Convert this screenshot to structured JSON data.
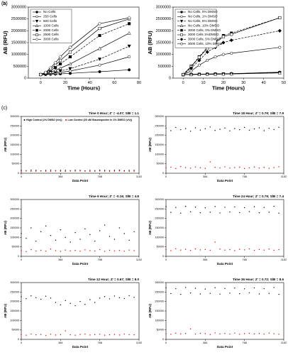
{
  "chart_data": [
    {
      "type": "line",
      "panel_label": "(a)",
      "xlabel": "Time (Hours)",
      "ylabel": "AB (RFU)",
      "x": [
        0,
        4,
        8,
        12,
        16,
        24,
        48,
        72
      ],
      "xlim": [
        -10,
        80
      ],
      "xticks": [
        0,
        20,
        40,
        60,
        80
      ],
      "ylim": [
        0,
        3000000
      ],
      "yticks": [
        0,
        500000,
        1000000,
        1500000,
        2000000,
        2500000,
        3000000
      ],
      "grid": false,
      "legend": "upper left",
      "series": [
        {
          "name": "No Cells",
          "color": "#000000",
          "marker": "circle",
          "fill": "#000000",
          "linestyle": "solid",
          "values": [
            150000,
            150000,
            160000,
            170000,
            180000,
            200000,
            270000,
            350000
          ]
        },
        {
          "name": "250 Cells",
          "color": "#000000",
          "marker": "circle",
          "fill": "#ffffff",
          "linestyle": "solid",
          "values": [
            150000,
            160000,
            180000,
            210000,
            240000,
            300000,
            550000,
            900000
          ]
        },
        {
          "name": "500 Cells",
          "color": "#000000",
          "marker": "triangle-down",
          "fill": "#000000",
          "linestyle": "dashed",
          "values": [
            150000,
            170000,
            200000,
            250000,
            300000,
            400000,
            800000,
            1350000
          ]
        },
        {
          "name": "1000 Cells",
          "color": "#000000",
          "marker": "triangle-up",
          "fill": "#ffffff",
          "linestyle": "solid",
          "values": [
            150000,
            180000,
            250000,
            330000,
            420000,
            600000,
            1250000,
            1900000
          ]
        },
        {
          "name": "2000 Cells",
          "color": "#000000",
          "marker": "square",
          "fill": "#000000",
          "linestyle": "dashed",
          "values": [
            150000,
            200000,
            320000,
            450000,
            600000,
            900000,
            1800000,
            2300000
          ]
        },
        {
          "name": "2500 Cells",
          "color": "#000000",
          "marker": "square",
          "fill": "#ffffff",
          "linestyle": "solid",
          "values": [
            150000,
            220000,
            380000,
            550000,
            750000,
            1100000,
            2100000,
            2500000
          ]
        },
        {
          "name": "3000 Cells",
          "color": "#000000",
          "marker": "diamond",
          "fill": "#ffffff",
          "linestyle": "solid",
          "values": [
            150000,
            240000,
            430000,
            650000,
            900000,
            1300000,
            2300000,
            2550000
          ]
        }
      ]
    },
    {
      "type": "line",
      "panel_label": "(b)",
      "xlabel": "Time (Hours)",
      "ylabel": "AB (RFU)",
      "x": [
        0,
        4,
        8,
        12,
        16,
        20,
        24,
        48
      ],
      "xlim": [
        -5,
        50
      ],
      "xticks": [
        0,
        10,
        20,
        30,
        40,
        50
      ],
      "ylim": [
        0,
        3000000
      ],
      "yticks": [
        0,
        500000,
        1000000,
        1500000,
        2000000,
        2500000,
        3000000
      ],
      "grid": false,
      "legend": "upper left",
      "series": [
        {
          "name": "No Cells, 0% DMSO",
          "color": "#000000",
          "marker": "circle",
          "fill": "#000000",
          "linestyle": "solid",
          "values": [
            150000,
            160000,
            170000,
            175000,
            180000,
            185000,
            190000,
            250000
          ]
        },
        {
          "name": "No Cells, 1% DMSO",
          "color": "#000000",
          "marker": "circle",
          "fill": "#ffffff",
          "linestyle": "solid",
          "values": [
            150000,
            155000,
            165000,
            170000,
            175000,
            180000,
            185000,
            240000
          ]
        },
        {
          "name": "No Cells, 5% DMSO",
          "color": "#000000",
          "marker": "triangle-down",
          "fill": "#000000",
          "linestyle": "dashed",
          "values": [
            145000,
            150000,
            160000,
            165000,
            170000,
            175000,
            180000,
            230000
          ]
        },
        {
          "name": "No Cells, 10% DMSO",
          "color": "#000000",
          "marker": "triangle-up",
          "fill": "#ffffff",
          "linestyle": "solid",
          "values": [
            140000,
            148000,
            155000,
            160000,
            165000,
            170000,
            175000,
            220000
          ]
        },
        {
          "name": "3000 Cells, 0% DMSO",
          "color": "#000000",
          "marker": "square",
          "fill": "#000000",
          "linestyle": "dashed",
          "values": [
            150000,
            500000,
            900000,
            1300000,
            1550000,
            1800000,
            1900000,
            2550000
          ]
        },
        {
          "name": "3000 Cells 1%DMSO",
          "color": "#000000",
          "marker": "square",
          "fill": "#ffffff",
          "linestyle": "solid",
          "values": [
            150000,
            480000,
            880000,
            1250000,
            1500000,
            1750000,
            1850000,
            2550000
          ]
        },
        {
          "name": "3000 Cells, 5% DMSO",
          "color": "#000000",
          "marker": "diamond",
          "fill": "#000000",
          "linestyle": "dashed",
          "values": [
            150000,
            420000,
            750000,
            1100000,
            1300000,
            1500000,
            1600000,
            2000000
          ]
        },
        {
          "name": "3000 Cells, 10% DMSO",
          "color": "#000000",
          "marker": "circle",
          "fill": "#ffffff",
          "linestyle": "solid",
          "values": [
            150000,
            300000,
            550000,
            750000,
            900000,
            1000000,
            1050000,
            1300000
          ]
        }
      ]
    },
    {
      "type": "scatter",
      "panel_label": "(c)",
      "title": "Time 0 Hour; Z' = -4.07; S/B = 1.1",
      "xlabel": "Data Point",
      "ylabel": "AB (RFU)",
      "x": [
        0,
        48,
        96,
        144,
        192,
        240,
        288,
        336,
        384,
        432,
        480,
        528,
        576,
        624,
        672,
        720,
        768,
        816,
        864,
        912,
        960,
        1008,
        1056,
        1104
      ],
      "xlim": [
        0,
        1152
      ],
      "xticks": [
        0,
        384,
        768,
        1152
      ],
      "ylim": [
        0,
        300000
      ],
      "yticks": [
        0,
        50000,
        100000,
        150000,
        200000,
        250000,
        300000
      ],
      "legend": "top",
      "series": [
        {
          "name": "High Control (1% DMSO (v/v))",
          "color": "#000000",
          "values": [
            15000,
            14000,
            16000,
            15000,
            13000,
            15000,
            16000,
            14000,
            15000,
            15000,
            14000,
            16000,
            15000,
            13000,
            15000,
            14000,
            16000,
            15000,
            14000,
            15000,
            16000,
            14000,
            15000,
            15000
          ]
        },
        {
          "name": "Low Control (25 uM Staurosporine in 1% DMSO (v/v))",
          "color": "#e00000",
          "values": [
            11000,
            12000,
            10000,
            11000,
            12000,
            11000,
            10000,
            12000,
            11000,
            10000,
            12000,
            11000,
            12000,
            11000,
            10000,
            11000,
            12000,
            11000,
            10000,
            11000,
            12000,
            11000,
            10000,
            11000
          ]
        }
      ]
    },
    {
      "type": "scatter",
      "title": "Time 18 Hour; Z' = 0.79; S/B = 7.9",
      "xlabel": "Data Point",
      "ylabel": "AB (RFU)",
      "x": [
        0,
        48,
        96,
        144,
        192,
        240,
        288,
        336,
        384,
        432,
        480,
        528,
        576,
        624,
        672,
        720,
        768,
        816,
        864,
        912,
        960,
        1008,
        1056,
        1104
      ],
      "xlim": [
        0,
        1152
      ],
      "xticks": [
        0,
        384,
        768,
        1152
      ],
      "ylim": [
        0,
        300000
      ],
      "yticks": [
        0,
        50000,
        100000,
        150000,
        200000,
        250000,
        300000
      ],
      "series": [
        {
          "color": "#000000",
          "values": [
            238000,
            225000,
            242000,
            230000,
            236000,
            222000,
            240000,
            228000,
            235000,
            244000,
            226000,
            232000,
            239000,
            224000,
            236000,
            230000,
            242000,
            227000,
            234000,
            240000,
            225000,
            237000,
            231000,
            243000
          ]
        },
        {
          "color": "#e00000",
          "values": [
            28000,
            32000,
            25000,
            35000,
            30000,
            27000,
            33000,
            29000,
            26000,
            60000,
            31000,
            28000,
            34000,
            27000,
            30000,
            32000,
            25000,
            29000,
            33000,
            28000,
            31000,
            26000,
            30000,
            34000
          ]
        }
      ]
    },
    {
      "type": "scatter",
      "title": "Time 6 Hour; Z' = -0.16; S/B = 4.8",
      "xlabel": "Data Point",
      "ylabel": "AB (RFU)",
      "x": [
        0,
        48,
        96,
        144,
        192,
        240,
        288,
        336,
        384,
        432,
        480,
        528,
        576,
        624,
        672,
        720,
        768,
        816,
        864,
        912,
        960,
        1008,
        1056,
        1104
      ],
      "xlim": [
        0,
        1152
      ],
      "xticks": [
        0,
        384,
        768,
        1152
      ],
      "ylim": [
        0,
        300000
      ],
      "yticks": [
        0,
        50000,
        100000,
        150000,
        200000,
        250000,
        300000
      ],
      "series": [
        {
          "color": "#000000",
          "values": [
            120000,
            95000,
            150000,
            80000,
            130000,
            160000,
            110000,
            85000,
            140000,
            100000,
            75000,
            125000,
            90000,
            145000,
            115000,
            80000,
            135000,
            165000,
            105000,
            90000,
            150000,
            120000,
            85000,
            130000
          ]
        },
        {
          "color": "#e00000",
          "values": [
            30000,
            25000,
            35000,
            28000,
            32000,
            27000,
            38000,
            30000,
            26000,
            33000,
            29000,
            31000,
            27000,
            34000,
            30000,
            28000,
            35000,
            26000,
            32000,
            29000,
            31000,
            27000,
            33000,
            30000
          ]
        }
      ]
    },
    {
      "type": "scatter",
      "title": "Time 24 Hour; Z' = 0.79; S/B = 7.4",
      "xlabel": "Data Point",
      "ylabel": "AB (RFU)",
      "x": [
        0,
        48,
        96,
        144,
        192,
        240,
        288,
        336,
        384,
        432,
        480,
        528,
        576,
        624,
        672,
        720,
        768,
        816,
        864,
        912,
        960,
        1008,
        1056,
        1104
      ],
      "xlim": [
        0,
        1152
      ],
      "xticks": [
        0,
        384,
        768,
        1152
      ],
      "ylim": [
        0,
        300000
      ],
      "yticks": [
        0,
        50000,
        100000,
        150000,
        200000,
        250000,
        300000
      ],
      "series": [
        {
          "color": "#000000",
          "values": [
            262000,
            232000,
            258000,
            228000,
            264000,
            235000,
            260000,
            230000,
            256000,
            233000,
            263000,
            229000,
            259000,
            234000,
            261000,
            231000,
            257000,
            236000,
            262000,
            230000,
            258000,
            233000,
            264000,
            228000
          ]
        },
        {
          "color": "#e00000",
          "values": [
            35000,
            30000,
            40000,
            33000,
            37000,
            31000,
            39000,
            34000,
            36000,
            32000,
            75000,
            38000,
            33000,
            35000,
            30000,
            37000,
            34000,
            39000,
            31000,
            36000,
            33000,
            38000,
            32000,
            35000
          ]
        }
      ]
    },
    {
      "type": "scatter",
      "title": "Time 12 Hour; Z' = 0.67; S/B = 8.0",
      "xlabel": "Data Point",
      "ylabel": "AB (RFU)",
      "x": [
        0,
        48,
        96,
        144,
        192,
        240,
        288,
        336,
        384,
        432,
        480,
        528,
        576,
        624,
        672,
        720,
        768,
        816,
        864,
        912,
        960,
        1008,
        1056,
        1104
      ],
      "xlim": [
        0,
        1152
      ],
      "xticks": [
        0,
        384,
        768,
        1152
      ],
      "ylim": [
        0,
        300000
      ],
      "yticks": [
        0,
        50000,
        100000,
        150000,
        200000,
        250000,
        300000
      ],
      "series": [
        {
          "color": "#000000",
          "values": [
            225000,
            215000,
            230000,
            220000,
            212000,
            228000,
            218000,
            195000,
            182000,
            205000,
            190000,
            178000,
            200000,
            185000,
            210000,
            195000,
            218000,
            226000,
            214000,
            229000,
            220000,
            216000,
            231000,
            222000
          ]
        },
        {
          "color": "#e00000",
          "values": [
            25000,
            22000,
            28000,
            24000,
            26000,
            21000,
            27000,
            23000,
            25000,
            45000,
            24000,
            22000,
            26000,
            28000,
            23000,
            25000,
            27000,
            22000,
            24000,
            26000,
            23000,
            28000,
            25000,
            24000
          ]
        }
      ]
    },
    {
      "type": "scatter",
      "title": "Time 36 Hour; Z' = 0.72; S/B = 8.6",
      "xlabel": "Data Point",
      "ylabel": "AB (RFU)",
      "x": [
        0,
        48,
        96,
        144,
        192,
        240,
        288,
        336,
        384,
        432,
        480,
        528,
        576,
        624,
        672,
        720,
        768,
        816,
        864,
        912,
        960,
        1008,
        1056,
        1104
      ],
      "xlim": [
        0,
        1152
      ],
      "xticks": [
        0,
        384,
        768,
        1152
      ],
      "ylim": [
        0,
        300000
      ],
      "yticks": [
        0,
        50000,
        100000,
        150000,
        200000,
        250000,
        300000
      ],
      "series": [
        {
          "color": "#000000",
          "values": [
            272000,
            242000,
            268000,
            238000,
            274000,
            245000,
            270000,
            240000,
            266000,
            243000,
            273000,
            239000,
            269000,
            244000,
            271000,
            241000,
            267000,
            246000,
            272000,
            240000,
            268000,
            243000,
            274000,
            238000
          ]
        },
        {
          "color": "#e00000",
          "values": [
            30000,
            27000,
            33000,
            29000,
            31000,
            55000,
            28000,
            32000,
            30000,
            26000,
            34000,
            29000,
            31000,
            28000,
            33000,
            27000,
            30000,
            32000,
            29000,
            31000,
            28000,
            33000,
            30000,
            27000
          ]
        }
      ]
    }
  ]
}
